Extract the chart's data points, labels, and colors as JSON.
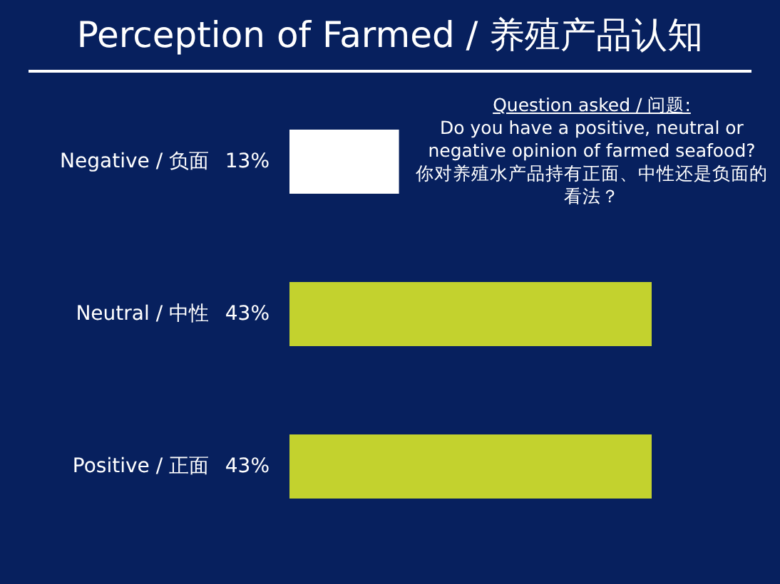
{
  "chart_data": {
    "type": "bar",
    "orientation": "horizontal",
    "title": "Perception of Farmed / 养殖产品认知",
    "categories": [
      "Negative / 负面",
      "Neutral / 中性",
      "Positive / 正面"
    ],
    "values": [
      13,
      43,
      43
    ],
    "value_labels": [
      "13%",
      "43%",
      "43%"
    ],
    "colors": [
      "#ffffff",
      "#c3d22e",
      "#c3d22e"
    ],
    "annotations": [
      "Question asked / 问题:",
      "Do you have a positive, neutral or negative opinion of farmed seafood?",
      "你对养殖水产品持有正面、中性还是负面的看法？"
    ]
  }
}
